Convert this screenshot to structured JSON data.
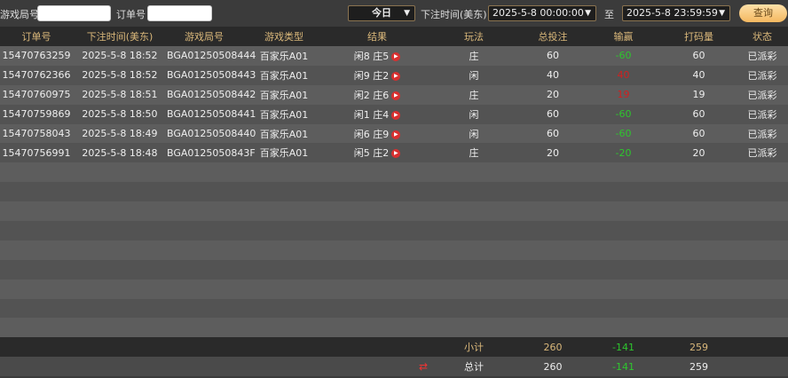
{
  "filters": {
    "game_round_label": "游戏局号",
    "game_round_value": "",
    "order_label": "订单号",
    "order_value": "",
    "range_select": "今日",
    "time_label": "下注时间(美东)",
    "start_time": "2025-5-8 00:00:00",
    "to_label": "至",
    "end_time": "2025-5-8 23:59:59",
    "query_label": "查询"
  },
  "columns": [
    "订单号",
    "下注时间(美东)",
    "游戏局号",
    "游戏类型",
    "结果",
    "玩法",
    "总投注",
    "输赢",
    "打码量",
    "状态"
  ],
  "rows": [
    {
      "order": "15470763259",
      "time": "2025-5-8 18:52",
      "round": "BGA01250508444",
      "type": "百家乐A01",
      "result": "闲8 庄5",
      "play": "庄",
      "bet": "60",
      "win": "-60",
      "win_color": "green",
      "turnover": "60",
      "status": "已派彩"
    },
    {
      "order": "15470762366",
      "time": "2025-5-8 18:52",
      "round": "BGA01250508443",
      "type": "百家乐A01",
      "result": "闲9 庄2",
      "play": "闲",
      "bet": "40",
      "win": "40",
      "win_color": "red",
      "turnover": "40",
      "status": "已派彩"
    },
    {
      "order": "15470760975",
      "time": "2025-5-8 18:51",
      "round": "BGA01250508442",
      "type": "百家乐A01",
      "result": "闲2 庄6",
      "play": "庄",
      "bet": "20",
      "win": "19",
      "win_color": "red",
      "turnover": "19",
      "status": "已派彩"
    },
    {
      "order": "15470759869",
      "time": "2025-5-8 18:50",
      "round": "BGA01250508441",
      "type": "百家乐A01",
      "result": "闲1 庄4",
      "play": "闲",
      "bet": "60",
      "win": "-60",
      "win_color": "green",
      "turnover": "60",
      "status": "已派彩"
    },
    {
      "order": "15470758043",
      "time": "2025-5-8 18:49",
      "round": "BGA01250508440",
      "type": "百家乐A01",
      "result": "闲6 庄9",
      "play": "闲",
      "bet": "60",
      "win": "-60",
      "win_color": "green",
      "turnover": "60",
      "status": "已派彩"
    },
    {
      "order": "15470756991",
      "time": "2025-5-8 18:48",
      "round": "BGA0125050843F",
      "type": "百家乐A01",
      "result": "闲5 庄2",
      "play": "庄",
      "bet": "20",
      "win": "-20",
      "win_color": "green",
      "turnover": "20",
      "status": "已派彩"
    }
  ],
  "subtotal": {
    "label": "小计",
    "bet": "260",
    "win": "-141",
    "turnover": "259"
  },
  "total": {
    "label": "总计",
    "bet": "260",
    "win": "-141",
    "turnover": "259",
    "icon": "swap-icon"
  },
  "colors": {
    "accent": "#d9b77a",
    "win_negative": "#2ec52e",
    "win_positive": "#d02020"
  }
}
